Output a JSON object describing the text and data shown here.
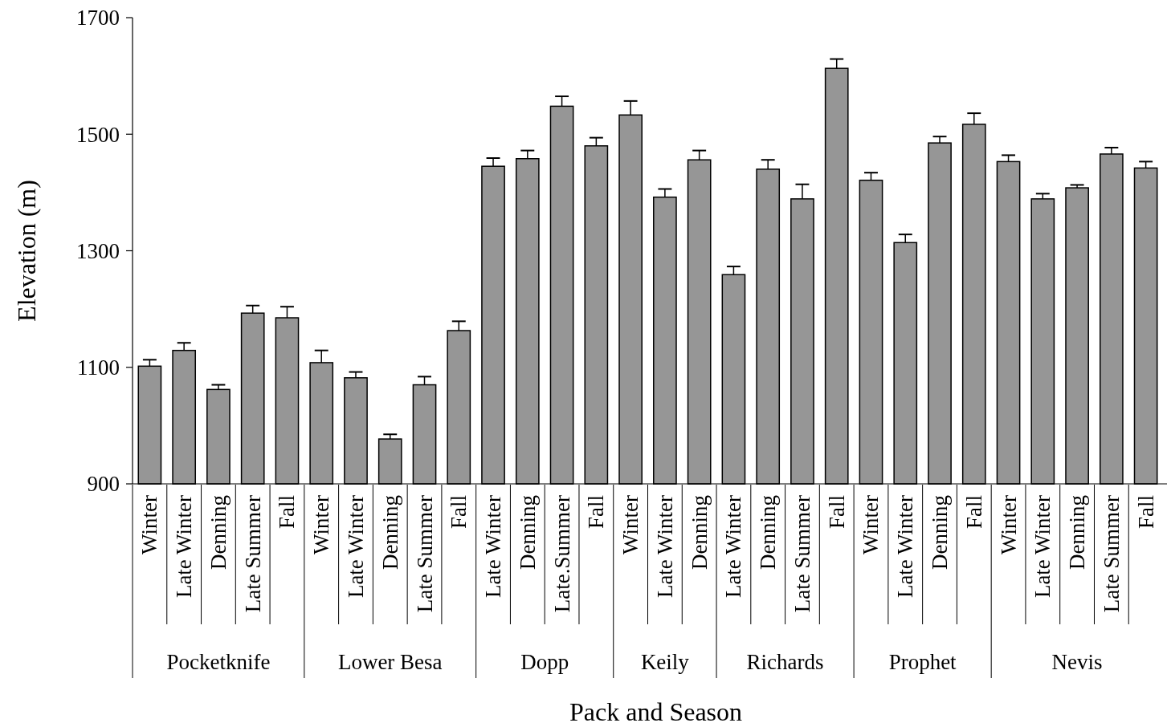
{
  "chart_data": {
    "type": "bar",
    "xlabel": "Pack and Season",
    "ylabel": "Elevation (m)",
    "categories": [
      "Winter",
      "Late Winter",
      "Denning",
      "Late Summer",
      "Fall",
      "Winter",
      "Late Winter",
      "Denning",
      "Late Summer",
      "Fall",
      "Late Winter",
      "Denning",
      "Late.Summer",
      "Fall",
      "Winter",
      "Late Winter",
      "Denning",
      "Late Winter",
      "Denning",
      "Late Summer",
      "Fall",
      "Winter",
      "Late Winter",
      "Denning",
      "Fall",
      "Winter",
      "Late Winter",
      "Denning",
      "Late Summer",
      "Fall"
    ],
    "values": [
      1102,
      1129,
      1062,
      1193,
      1185,
      1108,
      1082,
      977,
      1070,
      1163,
      1445,
      1458,
      1548,
      1480,
      1533,
      1392,
      1456,
      1259,
      1440,
      1389,
      1613,
      1421,
      1314,
      1485,
      1517,
      1453,
      1389,
      1408,
      1466,
      1442
    ],
    "errors": [
      [
        1102,
        1113
      ],
      [
        1129,
        1142
      ],
      [
        1062,
        1070
      ],
      [
        1193,
        1206
      ],
      [
        1185,
        1204
      ],
      [
        1108,
        1129
      ],
      [
        1082,
        1092
      ],
      [
        977,
        985
      ],
      [
        1070,
        1084
      ],
      [
        1163,
        1179
      ],
      [
        1445,
        1459
      ],
      [
        1458,
        1472
      ],
      [
        1548,
        1565
      ],
      [
        1480,
        1494
      ],
      [
        1533,
        1557
      ],
      [
        1392,
        1406
      ],
      [
        1456,
        1472
      ],
      [
        1259,
        1273
      ],
      [
        1440,
        1456
      ],
      [
        1389,
        1414
      ],
      [
        1613,
        1629
      ],
      [
        1421,
        1434
      ],
      [
        1314,
        1328
      ],
      [
        1485,
        1496
      ],
      [
        1517,
        1536
      ],
      [
        1453,
        1464
      ],
      [
        1389,
        1398
      ],
      [
        1408,
        1413
      ],
      [
        1466,
        1477
      ],
      [
        1442,
        1453
      ]
    ],
    "color": "#969696",
    "ylim": [
      900,
      1700
    ],
    "yticks": [
      900,
      1100,
      1300,
      1500,
      1700
    ],
    "grid": false,
    "annotations": [
      "Pocketknife",
      "Lower Besa",
      "Dopp",
      "Keily",
      "Richards",
      "Prophet",
      "Nevis"
    ]
  }
}
